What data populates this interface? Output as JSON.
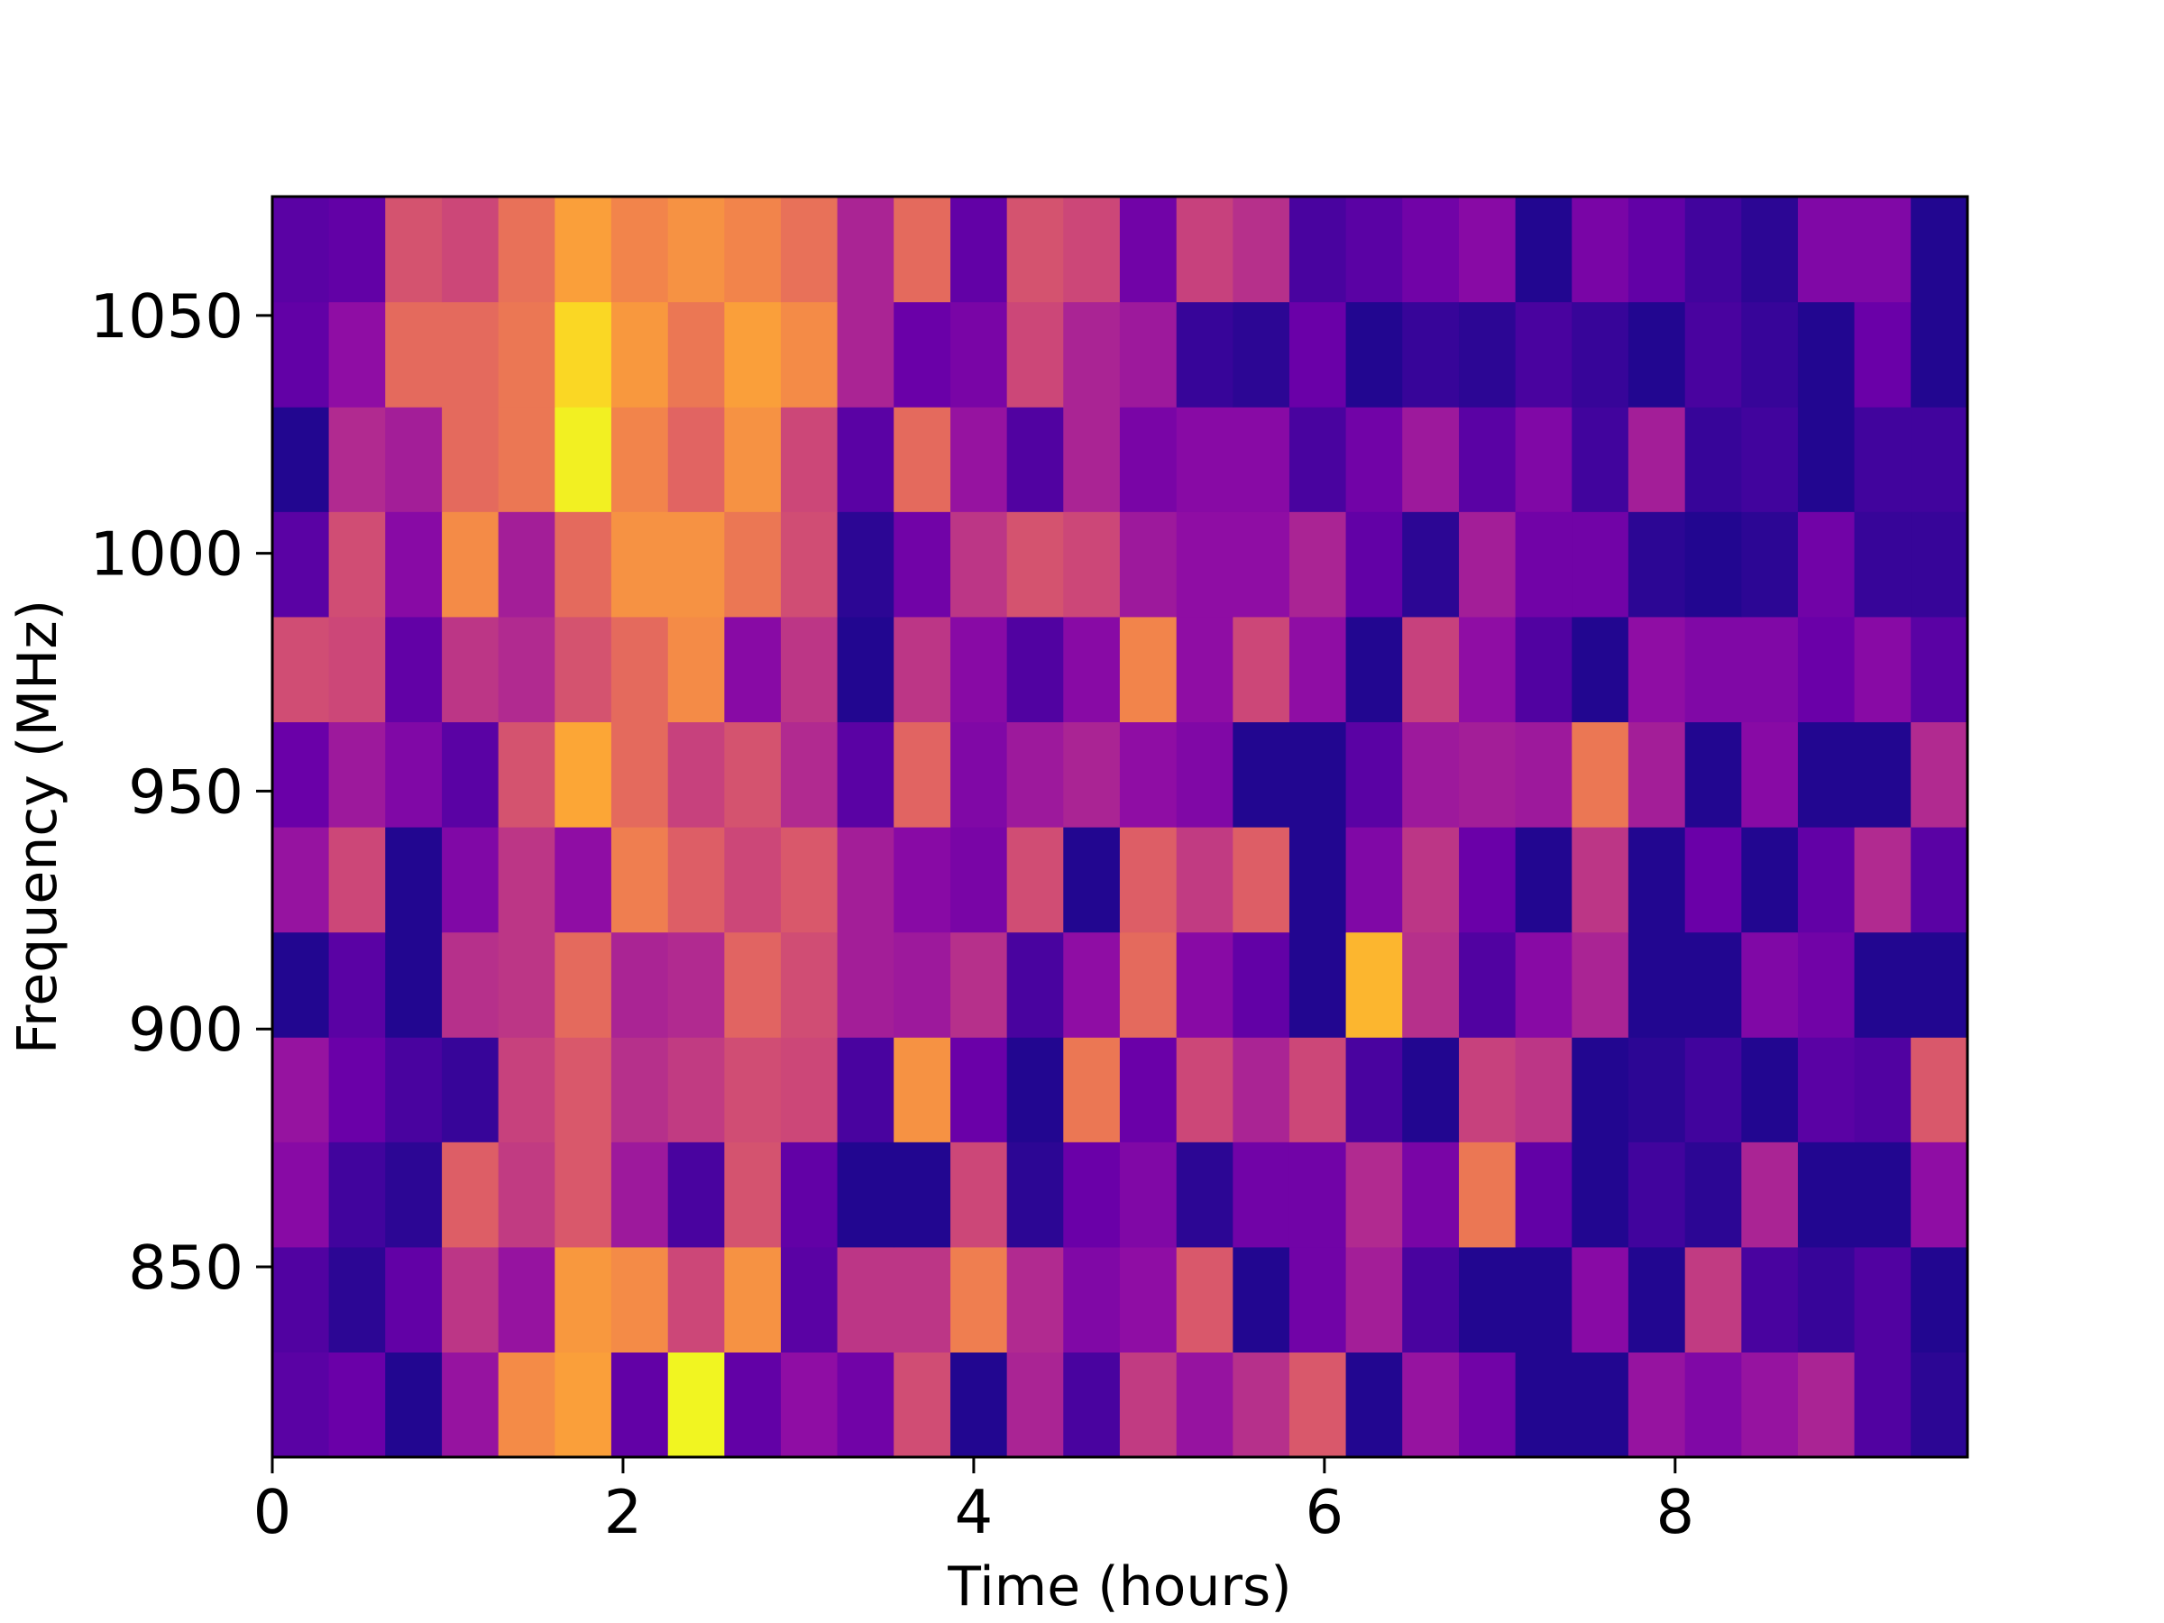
{
  "chart_data": {
    "type": "heatmap",
    "title": "",
    "xlabel": "Time (hours)",
    "ylabel": "Frequency (MHz)",
    "xlim": [
      0,
      9.667
    ],
    "ylim": [
      810,
      1075
    ],
    "x_ticks": [
      0,
      2,
      4,
      6,
      8
    ],
    "y_ticks": [
      850,
      900,
      950,
      1000,
      1050
    ],
    "x_tick_labels": [
      "0",
      "2",
      "4",
      "6",
      "8"
    ],
    "y_tick_labels": [
      "850",
      "900",
      "950",
      "1000",
      "1050"
    ],
    "colormap": "plasma",
    "value_range": [
      0,
      1
    ],
    "grid": false,
    "legend": "none",
    "x_edges": [
      0,
      0.322,
      0.644,
      0.967,
      1.289,
      1.611,
      1.933,
      2.256,
      2.578,
      2.9,
      3.222,
      3.544,
      3.867,
      4.189,
      4.511,
      4.833,
      5.156,
      5.478,
      5.8,
      6.122,
      6.444,
      6.767,
      7.089,
      7.411,
      7.733,
      8.056,
      8.378,
      8.7,
      9.022,
      9.344,
      9.667
    ],
    "y_edges": [
      810,
      832.1,
      854.2,
      876.3,
      898.3,
      920.4,
      942.5,
      964.6,
      986.7,
      1008.8,
      1030.8,
      1052.9,
      1075
    ],
    "values": [
      [
        0.16,
        0.2,
        0.04,
        0.32,
        0.72,
        0.78,
        0.18,
        0.99,
        0.18,
        0.3,
        0.22,
        0.52,
        0.04,
        0.38,
        0.12,
        0.46,
        0.32,
        0.42,
        0.56,
        0.04,
        0.32,
        0.22,
        0.04,
        0.04,
        0.32,
        0.26,
        0.32,
        0.38,
        0.14,
        0.06
      ],
      [
        0.14,
        0.06,
        0.18,
        0.44,
        0.32,
        0.76,
        0.72,
        0.5,
        0.74,
        0.16,
        0.44,
        0.44,
        0.68,
        0.4,
        0.26,
        0.3,
        0.56,
        0.04,
        0.22,
        0.36,
        0.12,
        0.04,
        0.04,
        0.28,
        0.04,
        0.46,
        0.12,
        0.08,
        0.14,
        0.04
      ],
      [
        0.28,
        0.1,
        0.06,
        0.58,
        0.46,
        0.56,
        0.34,
        0.12,
        0.54,
        0.18,
        0.04,
        0.04,
        0.5,
        0.06,
        0.2,
        0.26,
        0.06,
        0.22,
        0.22,
        0.4,
        0.24,
        0.66,
        0.18,
        0.04,
        0.1,
        0.06,
        0.38,
        0.04,
        0.04,
        0.3
      ],
      [
        0.32,
        0.2,
        0.12,
        0.08,
        0.48,
        0.56,
        0.42,
        0.46,
        0.52,
        0.5,
        0.12,
        0.74,
        0.2,
        0.04,
        0.66,
        0.2,
        0.5,
        0.38,
        0.5,
        0.12,
        0.04,
        0.48,
        0.44,
        0.04,
        0.06,
        0.1,
        0.04,
        0.16,
        0.14,
        0.56
      ],
      [
        0.04,
        0.16,
        0.04,
        0.42,
        0.44,
        0.62,
        0.38,
        0.4,
        0.6,
        0.52,
        0.36,
        0.34,
        0.42,
        0.12,
        0.3,
        0.62,
        0.28,
        0.18,
        0.04,
        0.84,
        0.42,
        0.14,
        0.28,
        0.38,
        0.04,
        0.04,
        0.26,
        0.22,
        0.04,
        0.04
      ],
      [
        0.32,
        0.5,
        0.04,
        0.26,
        0.44,
        0.3,
        0.68,
        0.58,
        0.5,
        0.56,
        0.36,
        0.28,
        0.24,
        0.52,
        0.04,
        0.58,
        0.46,
        0.58,
        0.04,
        0.26,
        0.44,
        0.2,
        0.04,
        0.44,
        0.04,
        0.2,
        0.04,
        0.18,
        0.4,
        0.16
      ],
      [
        0.2,
        0.34,
        0.26,
        0.16,
        0.54,
        0.8,
        0.62,
        0.48,
        0.54,
        0.4,
        0.16,
        0.6,
        0.26,
        0.34,
        0.38,
        0.3,
        0.26,
        0.04,
        0.04,
        0.16,
        0.34,
        0.36,
        0.34,
        0.66,
        0.36,
        0.04,
        0.28,
        0.04,
        0.04,
        0.4
      ],
      [
        0.52,
        0.5,
        0.18,
        0.44,
        0.4,
        0.54,
        0.62,
        0.72,
        0.28,
        0.44,
        0.04,
        0.44,
        0.28,
        0.14,
        0.28,
        0.7,
        0.3,
        0.5,
        0.3,
        0.04,
        0.48,
        0.3,
        0.14,
        0.04,
        0.3,
        0.26,
        0.26,
        0.2,
        0.28,
        0.16
      ],
      [
        0.16,
        0.52,
        0.28,
        0.72,
        0.36,
        0.62,
        0.74,
        0.74,
        0.66,
        0.52,
        0.06,
        0.22,
        0.44,
        0.54,
        0.5,
        0.34,
        0.3,
        0.3,
        0.38,
        0.18,
        0.06,
        0.36,
        0.22,
        0.22,
        0.06,
        0.04,
        0.06,
        0.22,
        0.08,
        0.08
      ],
      [
        0.04,
        0.4,
        0.36,
        0.62,
        0.66,
        0.98,
        0.7,
        0.6,
        0.74,
        0.5,
        0.16,
        0.62,
        0.32,
        0.14,
        0.38,
        0.24,
        0.28,
        0.28,
        0.12,
        0.22,
        0.34,
        0.16,
        0.26,
        0.1,
        0.36,
        0.08,
        0.1,
        0.04,
        0.1,
        0.1
      ],
      [
        0.18,
        0.3,
        0.62,
        0.62,
        0.66,
        0.92,
        0.76,
        0.66,
        0.78,
        0.72,
        0.38,
        0.2,
        0.24,
        0.5,
        0.38,
        0.34,
        0.08,
        0.06,
        0.2,
        0.04,
        0.08,
        0.06,
        0.12,
        0.08,
        0.04,
        0.12,
        0.08,
        0.04,
        0.2,
        0.04
      ],
      [
        0.16,
        0.18,
        0.54,
        0.5,
        0.64,
        0.78,
        0.7,
        0.74,
        0.7,
        0.64,
        0.38,
        0.62,
        0.18,
        0.54,
        0.5,
        0.22,
        0.48,
        0.42,
        0.12,
        0.16,
        0.22,
        0.28,
        0.04,
        0.24,
        0.18,
        0.1,
        0.06,
        0.26,
        0.26,
        0.04
      ]
    ]
  }
}
